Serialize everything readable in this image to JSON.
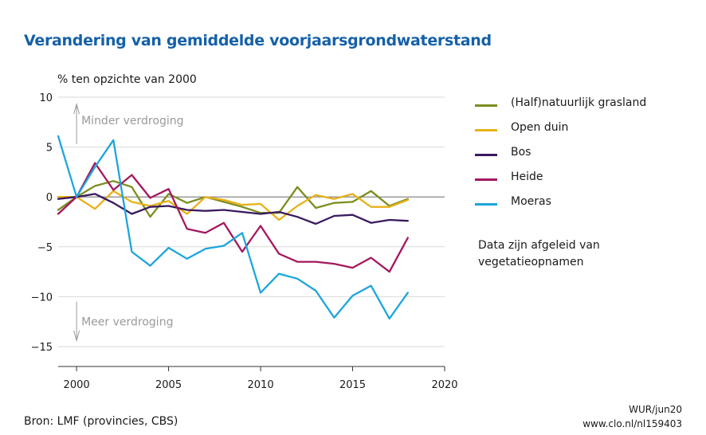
{
  "chart_data": {
    "type": "line",
    "title": "Verandering van gemiddelde voorjaarsgrondwaterstand",
    "ylabel": "% ten opzichte van 2000",
    "xlabel": "",
    "xlim": [
      1999,
      2020
    ],
    "ylim": [
      -17,
      10
    ],
    "xticks": [
      2000,
      2005,
      2010,
      2015,
      2020
    ],
    "yticks": [
      10,
      5,
      0,
      -5,
      -10,
      -15
    ],
    "grid": "horizontal",
    "legend_position": "right",
    "x": [
      1999,
      2000,
      2001,
      2002,
      2003,
      2004,
      2005,
      2006,
      2007,
      2008,
      2009,
      2010,
      2011,
      2012,
      2013,
      2014,
      2015,
      2016,
      2017,
      2018
    ],
    "series": [
      {
        "name": "(Half)natuurlijk grasland",
        "color": "#7c8d1f",
        "values": [
          -1.3,
          0,
          1.1,
          1.6,
          1.0,
          -2.0,
          0.3,
          -0.6,
          0,
          -0.5,
          -1.0,
          -1.6,
          -1.6,
          1.0,
          -1.1,
          -0.6,
          -0.5,
          0.6,
          -0.9,
          -0.2
        ]
      },
      {
        "name": "Open duin",
        "color": "#e8b118",
        "values": [
          0,
          0,
          -1.2,
          0.6,
          -0.5,
          -0.9,
          -0.4,
          -1.7,
          0,
          -0.3,
          -0.8,
          -0.7,
          -2.3,
          -0.9,
          0.2,
          -0.2,
          0.3,
          -1.0,
          -1.0,
          -0.3
        ]
      },
      {
        "name": "Bos",
        "color": "#3a1a5e",
        "values": [
          -0.2,
          0,
          0.3,
          -0.6,
          -1.7,
          -1.0,
          -0.9,
          -1.3,
          -1.4,
          -1.3,
          -1.5,
          -1.7,
          -1.5,
          -2.0,
          -2.7,
          -1.9,
          -1.8,
          -2.6,
          -2.3,
          -2.4
        ]
      },
      {
        "name": "Heide",
        "color": "#a3185f",
        "values": [
          -1.7,
          0,
          3.4,
          0.7,
          2.2,
          -0.1,
          0.8,
          -3.2,
          -3.6,
          -2.6,
          -5.5,
          -2.9,
          -5.7,
          -6.5,
          -6.5,
          -6.7,
          -7.1,
          -6.1,
          -7.5,
          -4.1
        ]
      },
      {
        "name": "Moeras",
        "color": "#1ea5dd",
        "values": [
          6.1,
          0,
          3.0,
          5.7,
          -5.5,
          -6.9,
          -5.1,
          -6.2,
          -5.2,
          -4.9,
          -3.6,
          -9.6,
          -7.7,
          -8.2,
          -9.4,
          -12.1,
          -9.9,
          -8.9,
          -12.2,
          -9.6
        ]
      }
    ],
    "annotations": [
      "Minder verdroging",
      "Meer verdroging"
    ]
  },
  "note": "Data zijn afgeleid van vegetatieopnamen",
  "source": "Bron: LMF (provincies, CBS)",
  "credit_line1": "WUR/jun20",
  "credit_line2": "www.clo.nl/nl159403"
}
